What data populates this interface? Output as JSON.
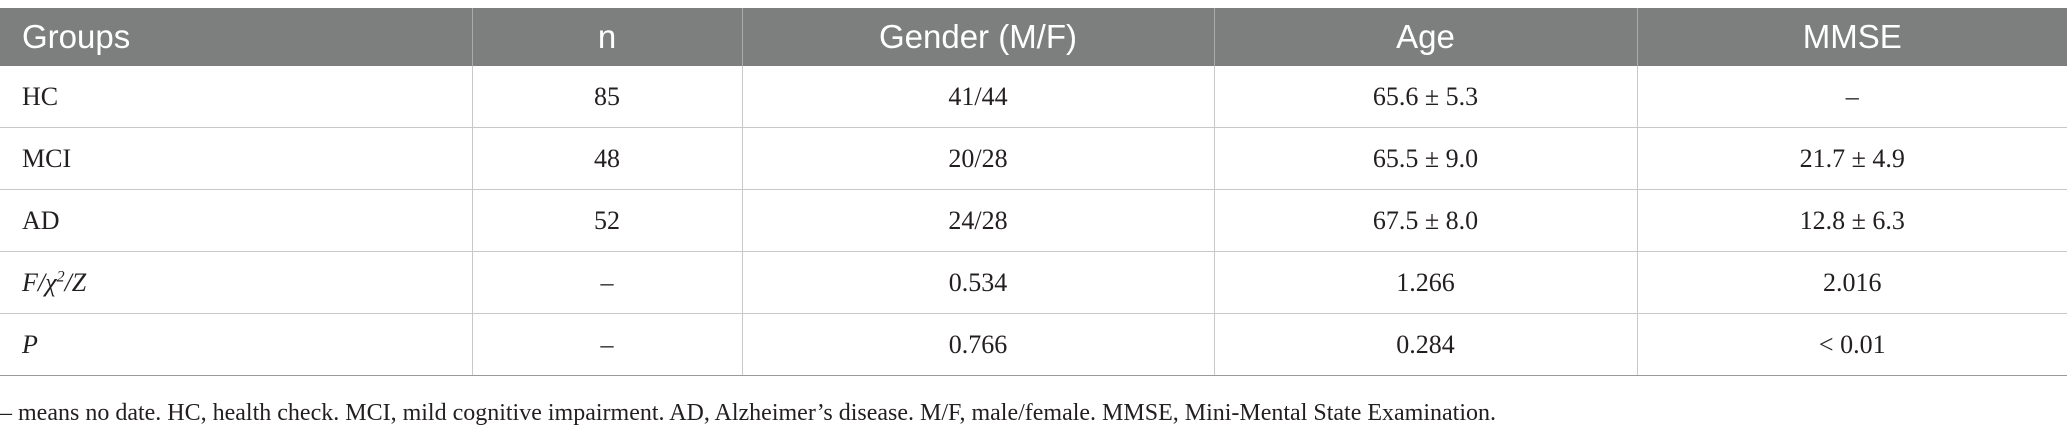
{
  "table": {
    "headers": [
      "Groups",
      "n",
      "Gender (M/F)",
      "Age",
      "MMSE"
    ],
    "rows": [
      {
        "group": "HC",
        "n": "85",
        "gender": "41/44",
        "age": "65.6 ± 5.3",
        "mmse": "–"
      },
      {
        "group": "MCI",
        "n": "48",
        "gender": "20/28",
        "age": "65.5 ± 9.0",
        "mmse": "21.7 ± 4.9"
      },
      {
        "group": "AD",
        "n": "52",
        "gender": "24/28",
        "age": "67.5 ± 8.0",
        "mmse": "12.8 ± 6.3"
      },
      {
        "group_parts": [
          "F/",
          "χ",
          "2",
          "/Z"
        ],
        "n": "–",
        "gender": "0.534",
        "age": "1.266",
        "mmse": "2.016"
      },
      {
        "group": "P",
        "n": "–",
        "gender": "0.766",
        "age": "0.284",
        "mmse": "< 0.01"
      }
    ]
  },
  "footnote": "– means no date. HC, health check. MCI, mild cognitive impairment. AD, Alzheimer’s disease. M/F, male/female. MMSE, Mini-Mental State Examination."
}
